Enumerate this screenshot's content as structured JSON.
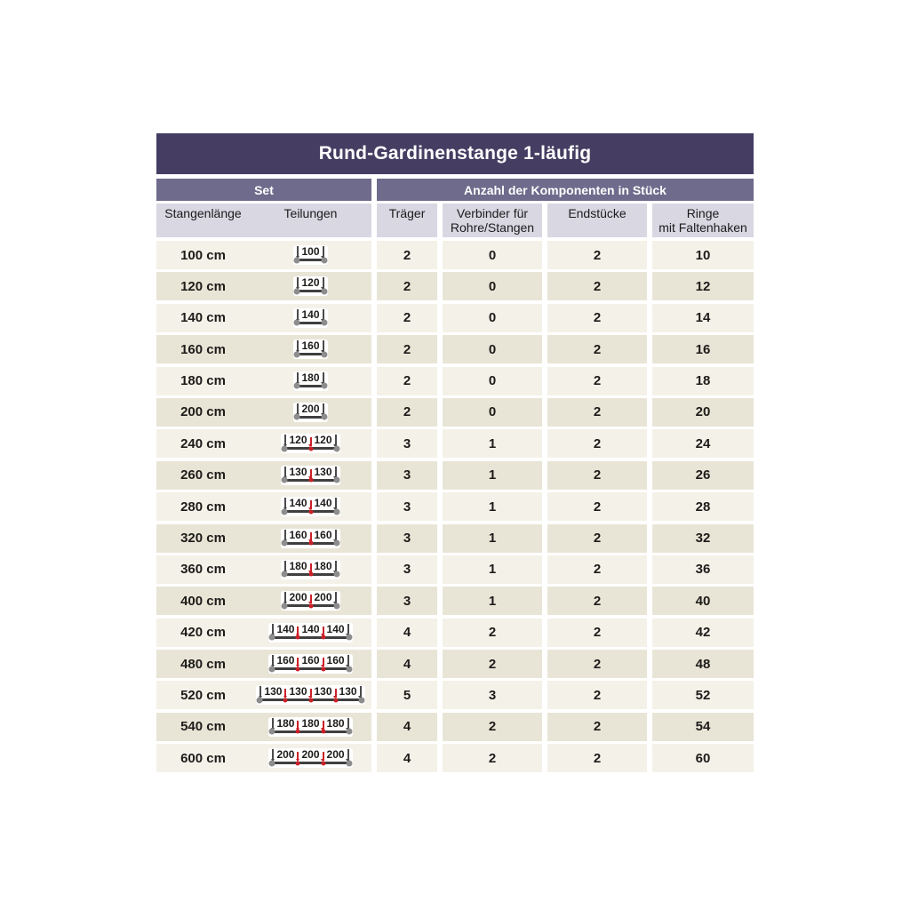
{
  "title": "Rund-Gardinenstange 1-läufig",
  "group_headers": {
    "set": "Set",
    "components": "Anzahl der Komponenten in Stück"
  },
  "columns": {
    "stangenlaenge": "Stangenlänge",
    "teilungen": "Teilungen",
    "traeger": "Träger",
    "verbinder_line1": "Verbinder für",
    "verbinder_line2": "Rohre/Stangen",
    "endstuecke": "Endstücke",
    "ringe_line1": "Ringe",
    "ringe_line2": "mit Faltenhaken"
  },
  "rows": [
    {
      "length": "100 cm",
      "segments": [
        100
      ],
      "traeger": "2",
      "verbinder": "0",
      "endstuecke": "2",
      "ringe": "10"
    },
    {
      "length": "120 cm",
      "segments": [
        120
      ],
      "traeger": "2",
      "verbinder": "0",
      "endstuecke": "2",
      "ringe": "12"
    },
    {
      "length": "140 cm",
      "segments": [
        140
      ],
      "traeger": "2",
      "verbinder": "0",
      "endstuecke": "2",
      "ringe": "14"
    },
    {
      "length": "160 cm",
      "segments": [
        160
      ],
      "traeger": "2",
      "verbinder": "0",
      "endstuecke": "2",
      "ringe": "16"
    },
    {
      "length": "180 cm",
      "segments": [
        180
      ],
      "traeger": "2",
      "verbinder": "0",
      "endstuecke": "2",
      "ringe": "18"
    },
    {
      "length": "200 cm",
      "segments": [
        200
      ],
      "traeger": "2",
      "verbinder": "0",
      "endstuecke": "2",
      "ringe": "20"
    },
    {
      "length": "240 cm",
      "segments": [
        120,
        120
      ],
      "traeger": "3",
      "verbinder": "1",
      "endstuecke": "2",
      "ringe": "24"
    },
    {
      "length": "260 cm",
      "segments": [
        130,
        130
      ],
      "traeger": "3",
      "verbinder": "1",
      "endstuecke": "2",
      "ringe": "26"
    },
    {
      "length": "280 cm",
      "segments": [
        140,
        140
      ],
      "traeger": "3",
      "verbinder": "1",
      "endstuecke": "2",
      "ringe": "28"
    },
    {
      "length": "320 cm",
      "segments": [
        160,
        160
      ],
      "traeger": "3",
      "verbinder": "1",
      "endstuecke": "2",
      "ringe": "32"
    },
    {
      "length": "360 cm",
      "segments": [
        180,
        180
      ],
      "traeger": "3",
      "verbinder": "1",
      "endstuecke": "2",
      "ringe": "36"
    },
    {
      "length": "400 cm",
      "segments": [
        200,
        200
      ],
      "traeger": "3",
      "verbinder": "1",
      "endstuecke": "2",
      "ringe": "40"
    },
    {
      "length": "420 cm",
      "segments": [
        140,
        140,
        140
      ],
      "traeger": "4",
      "verbinder": "2",
      "endstuecke": "2",
      "ringe": "42"
    },
    {
      "length": "480 cm",
      "segments": [
        160,
        160,
        160
      ],
      "traeger": "4",
      "verbinder": "2",
      "endstuecke": "2",
      "ringe": "48"
    },
    {
      "length": "520 cm",
      "segments": [
        130,
        130,
        130,
        130
      ],
      "traeger": "5",
      "verbinder": "3",
      "endstuecke": "2",
      "ringe": "52"
    },
    {
      "length": "540 cm",
      "segments": [
        180,
        180,
        180
      ],
      "traeger": "4",
      "verbinder": "2",
      "endstuecke": "2",
      "ringe": "54"
    },
    {
      "length": "600 cm",
      "segments": [
        200,
        200,
        200
      ],
      "traeger": "4",
      "verbinder": "2",
      "endstuecke": "2",
      "ringe": "60"
    }
  ],
  "colors": {
    "title_bg": "#453e62",
    "group_bg": "#6e6b8c",
    "colhead_bg": "#d8d7e2",
    "row_light": "#f4f1e8",
    "row_dark": "#e9e5d6",
    "accent_red": "#cb2027",
    "rod_color": "#3f3f3f",
    "rod_end": "#8d8d8d"
  }
}
